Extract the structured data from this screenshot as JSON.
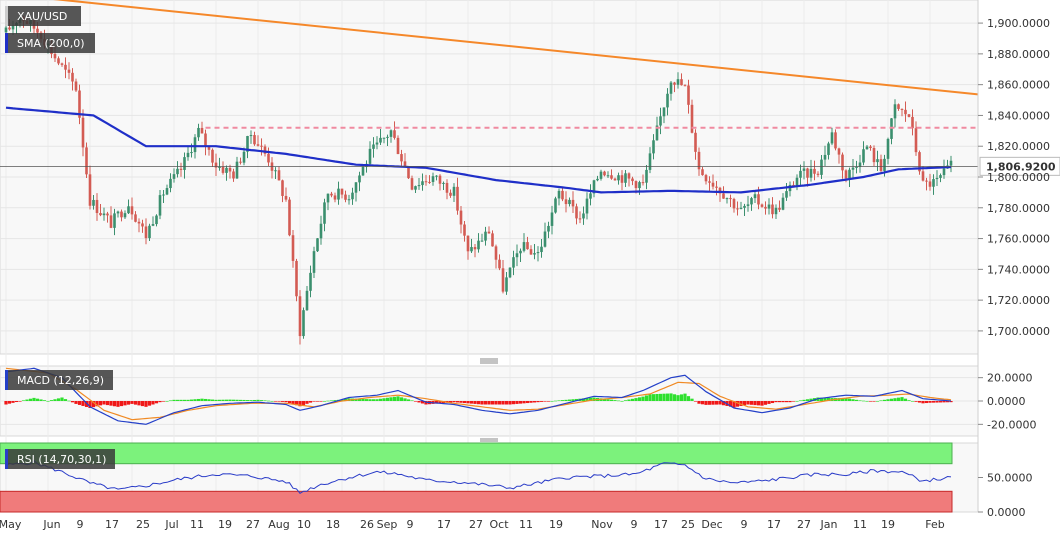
{
  "symbol": "XAU/USD",
  "sma_label": "SMA (200,0)",
  "macd_label": "MACD (12,26,9)",
  "rsi_label": "RSI (14,70,30,1)",
  "last_price_label": "1,806.9200",
  "colors": {
    "up": "#3b8f6e",
    "down": "#d35b53",
    "sma": "#1f2fc8",
    "trend": "#f5882a",
    "resistance": "#f08aa0",
    "macd": "#2440c8",
    "signal": "#f08a24",
    "hist_up": "#2ee02e",
    "hist_down": "#f01818",
    "rsi_line": "#2a3cc8",
    "rsi_overbought": "#7cf27c",
    "rsi_oversold": "#f07b7b"
  },
  "chart_data": [
    {
      "type": "candlestick",
      "title": "XAU/USD",
      "ylim": [
        1685,
        1915
      ],
      "yticks": [
        "1,700.0000",
        "1,720.0000",
        "1,740.0000",
        "1,760.0000",
        "1,780.0000",
        "1,800.0000",
        "1,820.0000",
        "1,840.0000",
        "1,860.0000",
        "1,880.0000",
        "1,900.0000"
      ],
      "ytick_values": [
        1700,
        1720,
        1740,
        1760,
        1780,
        1800,
        1820,
        1840,
        1860,
        1880,
        1900
      ],
      "x_labels": [
        "May",
        "Jun",
        "9",
        "17",
        "25",
        "Jul",
        "11",
        "19",
        "27",
        "Aug",
        "10",
        "18",
        "26",
        "Sep",
        "9",
        "17",
        "27",
        "Oct",
        "11",
        "19",
        "Nov",
        "9",
        "17",
        "25",
        "Dec",
        "9",
        "17",
        "27",
        "Jan",
        "11",
        "19",
        "Feb"
      ],
      "anchors": [
        [
          0,
          1894
        ],
        [
          4,
          1905
        ],
        [
          10,
          1893
        ],
        [
          14,
          1878
        ],
        [
          20,
          1858
        ],
        [
          24,
          1785
        ],
        [
          30,
          1770
        ],
        [
          35,
          1783
        ],
        [
          40,
          1762
        ],
        [
          45,
          1790
        ],
        [
          50,
          1805
        ],
        [
          55,
          1830
        ],
        [
          60,
          1808
        ],
        [
          65,
          1802
        ],
        [
          70,
          1828
        ],
        [
          75,
          1812
        ],
        [
          80,
          1785
        ],
        [
          84,
          1700
        ],
        [
          88,
          1752
        ],
        [
          92,
          1790
        ],
        [
          98,
          1788
        ],
        [
          104,
          1815
        ],
        [
          110,
          1830
        ],
        [
          116,
          1795
        ],
        [
          122,
          1800
        ],
        [
          128,
          1790
        ],
        [
          132,
          1750
        ],
        [
          138,
          1765
        ],
        [
          142,
          1728
        ],
        [
          147,
          1755
        ],
        [
          152,
          1750
        ],
        [
          158,
          1790
        ],
        [
          164,
          1773
        ],
        [
          170,
          1805
        ],
        [
          176,
          1800
        ],
        [
          182,
          1795
        ],
        [
          186,
          1830
        ],
        [
          190,
          1865
        ],
        [
          194,
          1858
        ],
        [
          198,
          1805
        ],
        [
          204,
          1792
        ],
        [
          210,
          1778
        ],
        [
          214,
          1785
        ],
        [
          220,
          1778
        ],
        [
          226,
          1800
        ],
        [
          232,
          1805
        ],
        [
          236,
          1828
        ],
        [
          240,
          1800
        ],
        [
          246,
          1820
        ],
        [
          250,
          1805
        ],
        [
          254,
          1845
        ],
        [
          258,
          1840
        ],
        [
          262,
          1795
        ],
        [
          266,
          1797
        ],
        [
          270,
          1806.92
        ]
      ],
      "sma": {
        "name": "SMA (200,0)",
        "values": [
          [
            0,
            1845
          ],
          [
            25,
            1840
          ],
          [
            40,
            1820
          ],
          [
            60,
            1820
          ],
          [
            80,
            1815
          ],
          [
            100,
            1808
          ],
          [
            120,
            1806
          ],
          [
            140,
            1798
          ],
          [
            160,
            1793
          ],
          [
            170,
            1790
          ],
          [
            190,
            1791
          ],
          [
            210,
            1790
          ],
          [
            230,
            1795
          ],
          [
            245,
            1800
          ],
          [
            255,
            1805
          ],
          [
            270,
            1806.5
          ]
        ]
      },
      "trendline": [
        [
          12,
          1916
        ],
        [
          270,
          1853
        ]
      ],
      "resistance": 1832,
      "last_price": 1806.92
    },
    {
      "type": "line",
      "title": "MACD (12,26,9)",
      "ylim": [
        -30,
        30
      ],
      "yticks": [
        "20.0000",
        "0.0000",
        "-20.0000"
      ],
      "ytick_values": [
        20,
        0,
        -20
      ],
      "macd": [
        [
          0,
          25
        ],
        [
          8,
          28
        ],
        [
          16,
          20
        ],
        [
          24,
          -5
        ],
        [
          32,
          -17
        ],
        [
          40,
          -20
        ],
        [
          48,
          -10
        ],
        [
          56,
          -4
        ],
        [
          64,
          -2
        ],
        [
          72,
          -1
        ],
        [
          80,
          -3
        ],
        [
          84,
          -8
        ],
        [
          90,
          -4
        ],
        [
          98,
          3
        ],
        [
          106,
          5
        ],
        [
          112,
          9
        ],
        [
          120,
          -1
        ],
        [
          128,
          -3
        ],
        [
          136,
          -8
        ],
        [
          144,
          -11
        ],
        [
          152,
          -8
        ],
        [
          160,
          -2
        ],
        [
          168,
          4
        ],
        [
          176,
          3
        ],
        [
          182,
          9
        ],
        [
          190,
          20
        ],
        [
          194,
          22
        ],
        [
          200,
          8
        ],
        [
          208,
          -6
        ],
        [
          216,
          -10
        ],
        [
          224,
          -6
        ],
        [
          232,
          2
        ],
        [
          240,
          5
        ],
        [
          248,
          4
        ],
        [
          256,
          9
        ],
        [
          262,
          2
        ],
        [
          270,
          0
        ]
      ],
      "signal": [
        [
          0,
          28
        ],
        [
          12,
          24
        ],
        [
          20,
          10
        ],
        [
          28,
          -8
        ],
        [
          36,
          -16
        ],
        [
          44,
          -14
        ],
        [
          52,
          -8
        ],
        [
          60,
          -4
        ],
        [
          70,
          -2
        ],
        [
          80,
          -2
        ],
        [
          88,
          -5
        ],
        [
          96,
          0
        ],
        [
          104,
          3
        ],
        [
          112,
          5
        ],
        [
          120,
          2
        ],
        [
          128,
          -2
        ],
        [
          136,
          -5
        ],
        [
          144,
          -8
        ],
        [
          152,
          -7
        ],
        [
          160,
          -3
        ],
        [
          168,
          1
        ],
        [
          176,
          3
        ],
        [
          184,
          6
        ],
        [
          192,
          16
        ],
        [
          198,
          15
        ],
        [
          204,
          4
        ],
        [
          212,
          -5
        ],
        [
          220,
          -7
        ],
        [
          228,
          -3
        ],
        [
          236,
          1
        ],
        [
          244,
          4
        ],
        [
          252,
          5
        ],
        [
          258,
          6
        ],
        [
          264,
          3
        ],
        [
          270,
          1
        ]
      ]
    },
    {
      "type": "line",
      "title": "RSI (14,70,30,1)",
      "ylim": [
        0,
        100
      ],
      "yticks": [
        "50.0000",
        "0.0000"
      ],
      "ytick_values": [
        50,
        0
      ],
      "overbought": 70,
      "oversold": 30,
      "rsi": [
        [
          0,
          68
        ],
        [
          8,
          72
        ],
        [
          16,
          58
        ],
        [
          24,
          42
        ],
        [
          32,
          32
        ],
        [
          40,
          38
        ],
        [
          50,
          48
        ],
        [
          60,
          55
        ],
        [
          70,
          52
        ],
        [
          80,
          44
        ],
        [
          84,
          28
        ],
        [
          90,
          40
        ],
        [
          98,
          50
        ],
        [
          106,
          58
        ],
        [
          112,
          55
        ],
        [
          120,
          46
        ],
        [
          128,
          44
        ],
        [
          136,
          40
        ],
        [
          144,
          35
        ],
        [
          152,
          42
        ],
        [
          160,
          50
        ],
        [
          170,
          52
        ],
        [
          180,
          55
        ],
        [
          188,
          70
        ],
        [
          194,
          68
        ],
        [
          200,
          48
        ],
        [
          208,
          42
        ],
        [
          216,
          45
        ],
        [
          224,
          50
        ],
        [
          232,
          55
        ],
        [
          240,
          54
        ],
        [
          248,
          60
        ],
        [
          256,
          58
        ],
        [
          262,
          45
        ],
        [
          270,
          50
        ]
      ]
    }
  ]
}
